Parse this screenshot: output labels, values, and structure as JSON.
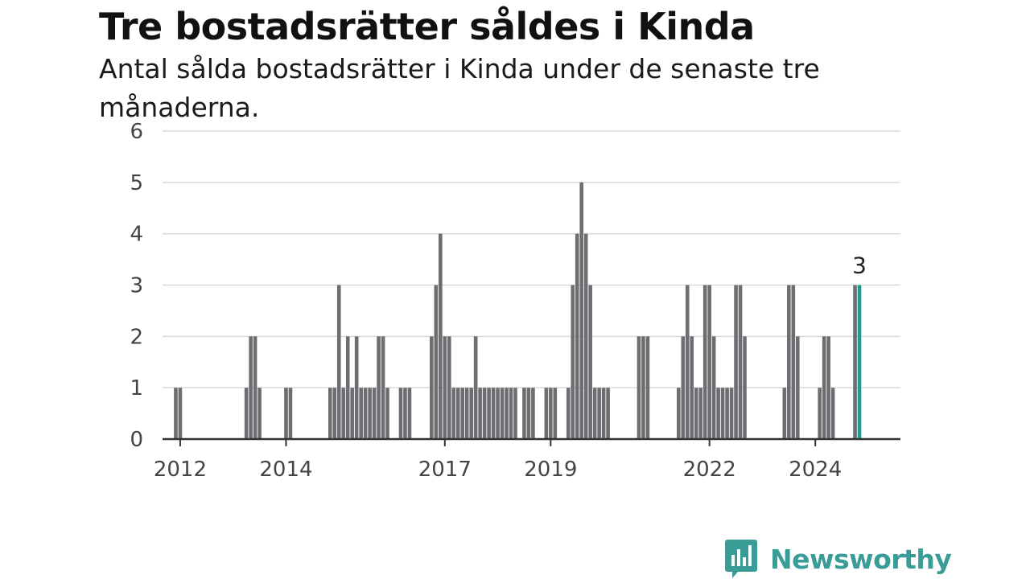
{
  "header": {
    "title": "Tre bostadsrätter såldes i Kinda",
    "subtitle": "Antal sålda bostadsrätter i Kinda under de senaste tre månaderna."
  },
  "brand": {
    "name": "Newsworthy",
    "logo_icon": "bar-chart-speech-bubble-icon",
    "color": "#3a9c96"
  },
  "colors": {
    "bar": "#6e6e72",
    "highlight": "#1f9c92",
    "grid": "#d9d9d9",
    "axis": "#333333"
  },
  "chart_data": {
    "type": "bar",
    "title": "Tre bostadsrätter såldes i Kinda",
    "subtitle": "Antal sålda bostadsrätter i Kinda under de senaste tre månaderna.",
    "xlabel": "",
    "ylabel": "",
    "ylim": [
      0,
      6
    ],
    "yticks": [
      0,
      1,
      2,
      3,
      4,
      5,
      6
    ],
    "xticks": [
      {
        "label": "2012",
        "month": "2012-01"
      },
      {
        "label": "2014",
        "month": "2014-01"
      },
      {
        "label": "2017",
        "month": "2017-01"
      },
      {
        "label": "2019",
        "month": "2019-01"
      },
      {
        "label": "2022",
        "month": "2022-01"
      },
      {
        "label": "2024",
        "month": "2024-01"
      }
    ],
    "grid": true,
    "x_start": "2011-08",
    "x_end": "2025-06",
    "points": [
      [
        "2011-12",
        1
      ],
      [
        "2012-01",
        1
      ],
      [
        "2013-04",
        1
      ],
      [
        "2013-05",
        2
      ],
      [
        "2013-06",
        2
      ],
      [
        "2013-07",
        1
      ],
      [
        "2014-01",
        1
      ],
      [
        "2014-02",
        1
      ],
      [
        "2014-11",
        1
      ],
      [
        "2014-12",
        1
      ],
      [
        "2015-01",
        3
      ],
      [
        "2015-02",
        1
      ],
      [
        "2015-03",
        2
      ],
      [
        "2015-04",
        1
      ],
      [
        "2015-05",
        2
      ],
      [
        "2015-06",
        1
      ],
      [
        "2015-07",
        1
      ],
      [
        "2015-08",
        1
      ],
      [
        "2015-09",
        1
      ],
      [
        "2015-10",
        2
      ],
      [
        "2015-11",
        2
      ],
      [
        "2015-12",
        1
      ],
      [
        "2016-03",
        1
      ],
      [
        "2016-04",
        1
      ],
      [
        "2016-05",
        1
      ],
      [
        "2016-10",
        2
      ],
      [
        "2016-11",
        3
      ],
      [
        "2016-12",
        4
      ],
      [
        "2017-01",
        2
      ],
      [
        "2017-02",
        2
      ],
      [
        "2017-03",
        1
      ],
      [
        "2017-04",
        1
      ],
      [
        "2017-05",
        1
      ],
      [
        "2017-06",
        1
      ],
      [
        "2017-07",
        1
      ],
      [
        "2017-08",
        2
      ],
      [
        "2017-09",
        1
      ],
      [
        "2017-10",
        1
      ],
      [
        "2017-11",
        1
      ],
      [
        "2017-12",
        1
      ],
      [
        "2018-01",
        1
      ],
      [
        "2018-02",
        1
      ],
      [
        "2018-03",
        1
      ],
      [
        "2018-04",
        1
      ],
      [
        "2018-05",
        1
      ],
      [
        "2018-07",
        1
      ],
      [
        "2018-08",
        1
      ],
      [
        "2018-09",
        1
      ],
      [
        "2018-12",
        1
      ],
      [
        "2019-01",
        1
      ],
      [
        "2019-02",
        1
      ],
      [
        "2019-05",
        1
      ],
      [
        "2019-06",
        3
      ],
      [
        "2019-07",
        4
      ],
      [
        "2019-08",
        5
      ],
      [
        "2019-09",
        4
      ],
      [
        "2019-10",
        3
      ],
      [
        "2019-11",
        1
      ],
      [
        "2019-12",
        1
      ],
      [
        "2020-01",
        1
      ],
      [
        "2020-02",
        1
      ],
      [
        "2020-09",
        2
      ],
      [
        "2020-10",
        2
      ],
      [
        "2020-11",
        2
      ],
      [
        "2021-06",
        1
      ],
      [
        "2021-07",
        2
      ],
      [
        "2021-08",
        3
      ],
      [
        "2021-09",
        2
      ],
      [
        "2021-10",
        1
      ],
      [
        "2021-11",
        1
      ],
      [
        "2021-12",
        3
      ],
      [
        "2022-01",
        3
      ],
      [
        "2022-02",
        2
      ],
      [
        "2022-03",
        1
      ],
      [
        "2022-04",
        1
      ],
      [
        "2022-05",
        1
      ],
      [
        "2022-06",
        1
      ],
      [
        "2022-07",
        3
      ],
      [
        "2022-08",
        3
      ],
      [
        "2022-09",
        2
      ],
      [
        "2023-06",
        1
      ],
      [
        "2023-07",
        3
      ],
      [
        "2023-08",
        3
      ],
      [
        "2023-09",
        2
      ],
      [
        "2024-02",
        1
      ],
      [
        "2024-03",
        2
      ],
      [
        "2024-04",
        2
      ],
      [
        "2024-05",
        1
      ],
      [
        "2024-10",
        3
      ],
      [
        "2024-11",
        3
      ]
    ],
    "highlight_month": "2024-11",
    "annotations": [
      {
        "month": "2024-11",
        "text": "3"
      }
    ]
  }
}
